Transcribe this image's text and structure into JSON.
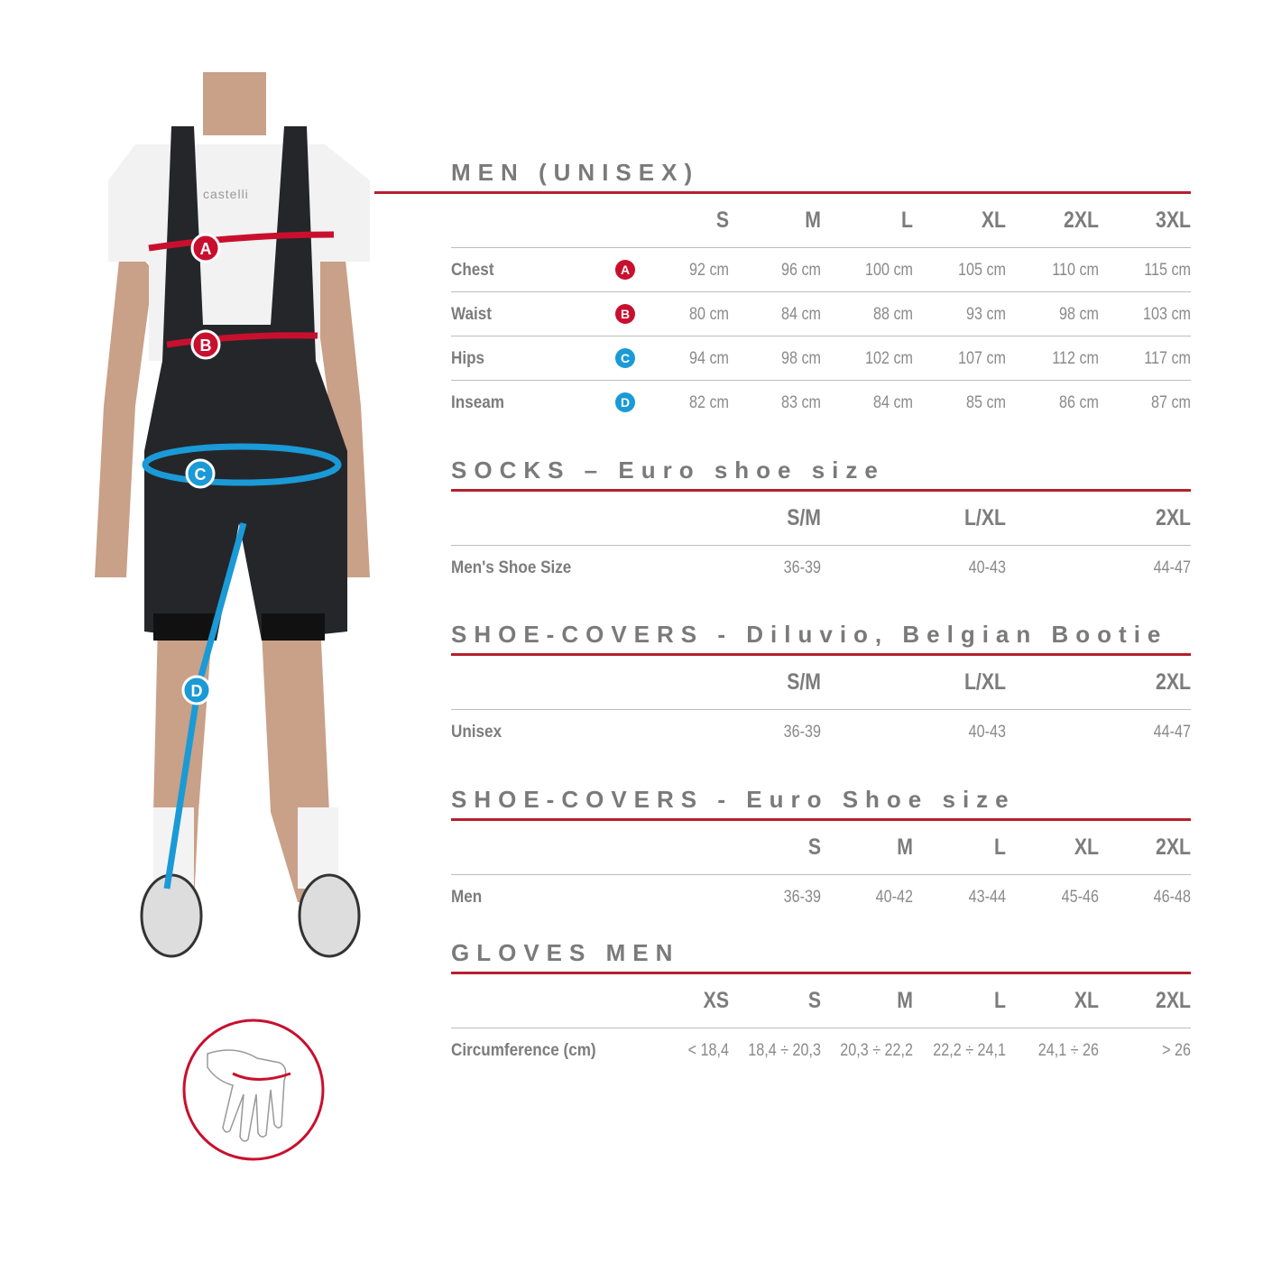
{
  "colors": {
    "red": "#c8102e",
    "blue": "#1a9ad6",
    "heading": "#7a7a7a",
    "rule": "#b5202e"
  },
  "figure": {
    "logo_text": "castelli",
    "markers": [
      "A",
      "B",
      "C",
      "D"
    ]
  },
  "sections": [
    {
      "title": "MEN (UNISEX)",
      "columns": [
        "S",
        "M",
        "L",
        "XL",
        "2XL",
        "3XL"
      ],
      "rows": [
        {
          "label": "Chest",
          "marker": "A",
          "marker_color": "#c8102e",
          "values": [
            "92 cm",
            "96 cm",
            "100 cm",
            "105 cm",
            "110 cm",
            "115 cm"
          ]
        },
        {
          "label": "Waist",
          "marker": "B",
          "marker_color": "#c8102e",
          "values": [
            "80 cm",
            "84 cm",
            "88 cm",
            "93 cm",
            "98 cm",
            "103 cm"
          ]
        },
        {
          "label": "Hips",
          "marker": "C",
          "marker_color": "#1a9ad6",
          "values": [
            "94 cm",
            "98 cm",
            "102 cm",
            "107 cm",
            "112 cm",
            "117 cm"
          ]
        },
        {
          "label": "Inseam",
          "marker": "D",
          "marker_color": "#1a9ad6",
          "values": [
            "82 cm",
            "83 cm",
            "84 cm",
            "85 cm",
            "86 cm",
            "87 cm"
          ]
        }
      ]
    },
    {
      "title": "SOCKS – Euro shoe size",
      "columns": [
        "S/M",
        "L/XL",
        "2XL"
      ],
      "rows": [
        {
          "label": "Men's Shoe Size",
          "values": [
            "36-39",
            "40-43",
            "44-47"
          ]
        }
      ]
    },
    {
      "title": "SHOE-COVERS - Diluvio, Belgian Bootie",
      "columns": [
        "S/M",
        "L/XL",
        "2XL"
      ],
      "rows": [
        {
          "label": "Unisex",
          "values": [
            "36-39",
            "40-43",
            "44-47"
          ]
        }
      ]
    },
    {
      "title": "SHOE-COVERS - Euro Shoe size",
      "columns": [
        "S",
        "M",
        "L",
        "XL",
        "2XL"
      ],
      "rows": [
        {
          "label": "Men",
          "values": [
            "36-39",
            "40-42",
            "43-44",
            "45-46",
            "46-48"
          ]
        }
      ]
    },
    {
      "title": "GLOVES MEN",
      "columns": [
        "XS",
        "S",
        "M",
        "L",
        "XL",
        "2XL"
      ],
      "rows": [
        {
          "label": "Circumference (cm)",
          "values": [
            "< 18,4",
            "18,4 ÷ 20,3",
            "20,3 ÷ 22,2",
            "22,2 ÷ 24,1",
            "24,1 ÷ 26",
            "> 26"
          ]
        }
      ]
    }
  ]
}
